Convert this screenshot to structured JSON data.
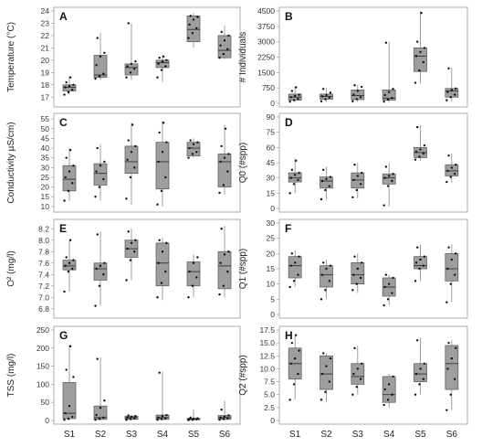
{
  "chart_data": [
    {
      "type": "box",
      "letter": "A",
      "ylabel": "Temperature (°C)",
      "categories": [
        "S1",
        "S2",
        "S3",
        "S4",
        "S5",
        "S6"
      ],
      "ylim": [
        16.5,
        24
      ],
      "yticks": [
        "17",
        "18",
        "19",
        "20",
        "21",
        "22",
        "23",
        "24"
      ],
      "boxes": [
        {
          "min": 17.2,
          "q1": 17.5,
          "median": 17.8,
          "q3": 18.0,
          "max": 18.7,
          "points": [
            17.2,
            17.4,
            17.6,
            17.8,
            17.9,
            18.0,
            18.2,
            18.6
          ]
        },
        {
          "min": 18.4,
          "q1": 18.6,
          "median": 18.8,
          "q3": 20.4,
          "max": 22.2,
          "points": [
            18.5,
            18.7,
            18.9,
            19.6,
            20.3,
            20.6,
            21.8
          ]
        },
        {
          "min": 18.4,
          "q1": 18.8,
          "median": 19.4,
          "q3": 19.7,
          "max": 23.0,
          "points": [
            18.6,
            19.0,
            19.3,
            19.5,
            19.7,
            19.9,
            23.0
          ]
        },
        {
          "min": 18.2,
          "q1": 19.4,
          "median": 19.8,
          "q3": 20.0,
          "max": 20.4,
          "points": [
            18.6,
            19.2,
            19.5,
            19.7,
            19.9,
            20.0,
            20.2,
            20.3
          ]
        },
        {
          "min": 21.0,
          "q1": 21.5,
          "median": 22.5,
          "q3": 23.6,
          "max": 23.8,
          "points": [
            21.8,
            22.2,
            22.6,
            22.9,
            23.3,
            23.5,
            23.6
          ]
        },
        {
          "min": 20.1,
          "q1": 20.2,
          "median": 20.8,
          "q3": 22.0,
          "max": 22.8,
          "points": [
            20.2,
            20.5,
            20.9,
            21.2,
            21.6,
            22.0,
            22.3
          ]
        }
      ]
    },
    {
      "type": "box",
      "letter": "B",
      "ylabel": "# Individuals",
      "categories": [
        "S1",
        "S2",
        "S3",
        "S4",
        "S5",
        "S6"
      ],
      "ylim": [
        0,
        4500
      ],
      "yticks": [
        "0",
        "750",
        "1500",
        "2250",
        "3000",
        "3750",
        "4500"
      ],
      "boxes": [
        {
          "min": 60,
          "q1": 150,
          "median": 300,
          "q3": 450,
          "max": 800,
          "points": [
            80,
            150,
            220,
            300,
            360,
            420,
            600,
            780
          ]
        },
        {
          "min": 60,
          "q1": 200,
          "median": 330,
          "q3": 450,
          "max": 750,
          "points": [
            100,
            200,
            280,
            340,
            400,
            520,
            700
          ]
        },
        {
          "min": 60,
          "q1": 180,
          "median": 380,
          "q3": 650,
          "max": 900,
          "points": [
            100,
            200,
            300,
            420,
            600,
            800,
            880
          ]
        },
        {
          "min": 60,
          "q1": 150,
          "median": 250,
          "q3": 650,
          "max": 3000,
          "points": [
            80,
            180,
            260,
            400,
            550,
            700,
            2950
          ]
        },
        {
          "min": 950,
          "q1": 1550,
          "median": 2300,
          "q3": 2700,
          "max": 4500,
          "points": [
            1000,
            1600,
            2000,
            2300,
            2500,
            2700,
            3000,
            4400
          ]
        },
        {
          "min": 80,
          "q1": 300,
          "median": 600,
          "q3": 720,
          "max": 1750,
          "points": [
            150,
            300,
            420,
            550,
            650,
            720,
            1700
          ]
        }
      ]
    },
    {
      "type": "box",
      "letter": "C",
      "ylabel": "Conductivity µS/cm)",
      "categories": [
        "S1",
        "S2",
        "S3",
        "S4",
        "S5",
        "S6"
      ],
      "ylim": [
        9,
        56
      ],
      "yticks": [
        "10",
        "15",
        "20",
        "25",
        "30",
        "35",
        "40",
        "45",
        "50",
        "55"
      ],
      "boxes": [
        {
          "min": 13,
          "q1": 18,
          "median": 24,
          "q3": 31,
          "max": 40,
          "points": [
            13,
            18,
            22,
            25,
            28,
            31,
            35,
            39
          ]
        },
        {
          "min": 13,
          "q1": 21,
          "median": 27,
          "q3": 32,
          "max": 42,
          "points": [
            15,
            20,
            24,
            28,
            31,
            33,
            40
          ]
        },
        {
          "min": 11,
          "q1": 27,
          "median": 33,
          "q3": 41,
          "max": 53,
          "points": [
            14,
            25,
            30,
            34,
            38,
            41,
            44,
            52
          ]
        },
        {
          "min": 10,
          "q1": 19,
          "median": 33,
          "q3": 43,
          "max": 54,
          "points": [
            11,
            18,
            25,
            33,
            38,
            43,
            48,
            53
          ]
        },
        {
          "min": 35,
          "q1": 36,
          "median": 40,
          "q3": 43,
          "max": 45,
          "points": [
            35,
            37,
            38,
            40,
            42,
            43,
            44
          ]
        },
        {
          "min": 16,
          "q1": 20,
          "median": 33,
          "q3": 37,
          "max": 52,
          "points": [
            17,
            21,
            28,
            33,
            35,
            37,
            41,
            50
          ]
        }
      ]
    },
    {
      "type": "box",
      "letter": "D",
      "ylabel": "Q0 (#spp)",
      "categories": [
        "S1",
        "S2",
        "S3",
        "S4",
        "S5",
        "S6"
      ],
      "ylim": [
        0,
        90
      ],
      "yticks": [
        "0",
        "15",
        "30",
        "45",
        "60",
        "75",
        "90"
      ],
      "boxes": [
        {
          "min": 15,
          "q1": 26,
          "median": 30,
          "q3": 35,
          "max": 49,
          "points": [
            15,
            24,
            28,
            30,
            33,
            35,
            38,
            47
          ]
        },
        {
          "min": 8,
          "q1": 20,
          "median": 27,
          "q3": 31,
          "max": 41,
          "points": [
            9,
            18,
            22,
            27,
            29,
            31,
            38
          ]
        },
        {
          "min": 10,
          "q1": 20,
          "median": 28,
          "q3": 35,
          "max": 45,
          "points": [
            11,
            18,
            24,
            28,
            32,
            35,
            43
          ]
        },
        {
          "min": 2,
          "q1": 24,
          "median": 30,
          "q3": 34,
          "max": 45,
          "points": [
            3,
            22,
            27,
            30,
            32,
            34,
            41
          ]
        },
        {
          "min": 47,
          "q1": 50,
          "median": 55,
          "q3": 60,
          "max": 82,
          "points": [
            48,
            51,
            54,
            56,
            58,
            62,
            80
          ]
        },
        {
          "min": 25,
          "q1": 32,
          "median": 37,
          "q3": 43,
          "max": 54,
          "points": [
            26,
            31,
            34,
            37,
            40,
            43,
            52
          ]
        }
      ]
    },
    {
      "type": "box",
      "letter": "E",
      "ylabel": "O² (mg/l)",
      "categories": [
        "S1",
        "S2",
        "S3",
        "S4",
        "S5",
        "S6"
      ],
      "ylim": [
        6.7,
        8.3
      ],
      "yticks": [
        "6.8",
        "7.0",
        "7.2",
        "7.4",
        "7.6",
        "7.8",
        "8.0",
        "8.2"
      ],
      "boxes": [
        {
          "min": 7.1,
          "q1": 7.48,
          "median": 7.55,
          "q3": 7.65,
          "max": 8.0,
          "points": [
            7.1,
            7.45,
            7.5,
            7.55,
            7.6,
            7.65,
            7.7,
            8.0
          ]
        },
        {
          "min": 6.85,
          "q1": 7.3,
          "median": 7.5,
          "q3": 7.6,
          "max": 8.15,
          "points": [
            6.85,
            7.2,
            7.4,
            7.5,
            7.55,
            7.6,
            8.1
          ]
        },
        {
          "min": 7.3,
          "q1": 7.7,
          "median": 7.85,
          "q3": 8.0,
          "max": 8.2,
          "points": [
            7.3,
            7.65,
            7.8,
            7.85,
            7.95,
            8.0,
            8.15
          ]
        },
        {
          "min": 6.95,
          "q1": 7.2,
          "median": 7.6,
          "q3": 7.95,
          "max": 8.05,
          "points": [
            7.0,
            7.25,
            7.45,
            7.6,
            7.8,
            7.95,
            8.0
          ]
        },
        {
          "min": 7.0,
          "q1": 7.2,
          "median": 7.45,
          "q3": 7.62,
          "max": 7.75,
          "points": [
            7.0,
            7.2,
            7.35,
            7.45,
            7.6,
            7.7
          ]
        },
        {
          "min": 7.0,
          "q1": 7.15,
          "median": 7.55,
          "q3": 7.8,
          "max": 8.25,
          "points": [
            7.05,
            7.2,
            7.45,
            7.6,
            7.75,
            7.8,
            8.2
          ]
        }
      ]
    },
    {
      "type": "box",
      "letter": "F",
      "ylabel": "Q1 (#spp)",
      "categories": [
        "S1",
        "S2",
        "S3",
        "S4",
        "S5",
        "S6"
      ],
      "ylim": [
        0,
        30
      ],
      "yticks": [
        "0",
        "5",
        "10",
        "15",
        "20",
        "25",
        "30"
      ],
      "boxes": [
        {
          "min": 9,
          "q1": 12,
          "median": 16,
          "q3": 19,
          "max": 21,
          "points": [
            9,
            11,
            13,
            16,
            17,
            19,
            20
          ]
        },
        {
          "min": 5,
          "q1": 9,
          "median": 13,
          "q3": 16,
          "max": 18,
          "points": [
            5,
            8,
            11,
            13,
            15,
            16,
            17
          ]
        },
        {
          "min": 7,
          "q1": 10,
          "median": 13,
          "q3": 17,
          "max": 20,
          "points": [
            8,
            10,
            12,
            13,
            15,
            17,
            19
          ]
        },
        {
          "min": 3,
          "q1": 6,
          "median": 9,
          "q3": 12,
          "max": 13,
          "points": [
            3,
            5,
            7,
            9,
            10,
            12,
            13
          ]
        },
        {
          "min": 11,
          "q1": 15,
          "median": 16,
          "q3": 19,
          "max": 23,
          "points": [
            11,
            15,
            16,
            17,
            18,
            19,
            22
          ]
        },
        {
          "min": 4,
          "q1": 11,
          "median": 15,
          "q3": 20,
          "max": 23,
          "points": [
            4,
            10,
            13,
            15,
            18,
            20,
            22
          ]
        }
      ]
    },
    {
      "type": "box",
      "letter": "G",
      "ylabel": "TSS (mg/l)",
      "categories": [
        "S1",
        "S2",
        "S3",
        "S4",
        "S5",
        "S6"
      ],
      "ylim": [
        0,
        250
      ],
      "yticks": [
        "0",
        "50",
        "100",
        "150",
        "200",
        "250"
      ],
      "boxes": [
        {
          "min": 0,
          "q1": 5,
          "median": 20,
          "q3": 105,
          "max": 210,
          "points": [
            2,
            5,
            10,
            20,
            40,
            120,
            140,
            205
          ]
        },
        {
          "min": 0,
          "q1": 3,
          "median": 8,
          "q3": 40,
          "max": 175,
          "points": [
            2,
            5,
            8,
            15,
            35,
            55,
            170
          ]
        },
        {
          "min": 0,
          "q1": 3,
          "median": 8,
          "q3": 12,
          "max": 15,
          "points": [
            2,
            4,
            6,
            8,
            10,
            12,
            14
          ]
        },
        {
          "min": 0,
          "q1": 3,
          "median": 8,
          "q3": 15,
          "max": 135,
          "points": [
            2,
            4,
            6,
            8,
            12,
            15,
            132
          ]
        },
        {
          "min": 0,
          "q1": 2,
          "median": 4,
          "q3": 6,
          "max": 30,
          "points": [
            1,
            2,
            3,
            4,
            5,
            6,
            8
          ]
        },
        {
          "min": 0,
          "q1": 3,
          "median": 8,
          "q3": 14,
          "max": 55,
          "points": [
            2,
            4,
            6,
            8,
            10,
            14,
            30
          ]
        }
      ]
    },
    {
      "type": "box",
      "letter": "H",
      "ylabel": "Q2 (#spp)",
      "categories": [
        "S1",
        "S2",
        "S3",
        "S4",
        "S5",
        "S6"
      ],
      "ylim": [
        0,
        17.5
      ],
      "yticks": [
        "0",
        "2.5",
        "5.0",
        "7.5",
        "10.0",
        "12.5",
        "15.0",
        "17.5"
      ],
      "boxes": [
        {
          "min": 4,
          "q1": 8,
          "median": 11,
          "q3": 14,
          "max": 16.5,
          "points": [
            4,
            7,
            9,
            11,
            12,
            13.5,
            15,
            16.5
          ]
        },
        {
          "min": 3.5,
          "q1": 6,
          "median": 9,
          "q3": 12.5,
          "max": 13,
          "points": [
            4,
            5.5,
            7.5,
            9,
            10.5,
            12,
            13
          ]
        },
        {
          "min": 5,
          "q1": 7,
          "median": 8.5,
          "q3": 11,
          "max": 14.5,
          "points": [
            5,
            6.5,
            8,
            9,
            10,
            11,
            14
          ]
        },
        {
          "min": 2.5,
          "q1": 3.5,
          "median": 5,
          "q3": 8.5,
          "max": 9,
          "points": [
            3,
            4,
            5,
            6,
            7,
            8.5
          ]
        },
        {
          "min": 5,
          "q1": 7.5,
          "median": 9,
          "q3": 11,
          "max": 16,
          "points": [
            5,
            7,
            8,
            9,
            10,
            11,
            15.5
          ]
        },
        {
          "min": 2,
          "q1": 6,
          "median": 11,
          "q3": 14.5,
          "max": 15.5,
          "points": [
            2,
            5,
            8,
            10,
            12,
            14,
            15
          ]
        }
      ]
    }
  ]
}
